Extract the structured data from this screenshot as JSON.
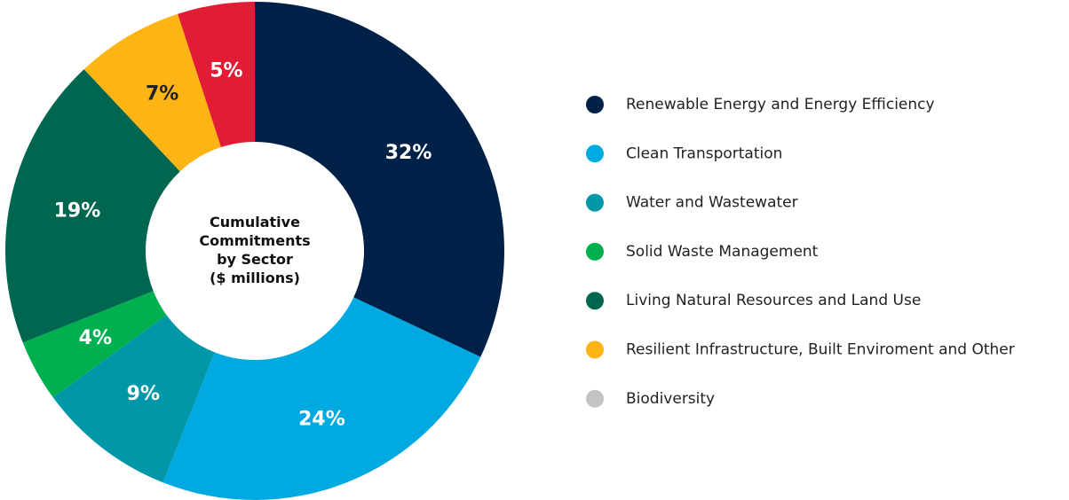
{
  "chart_data": {
    "type": "donut",
    "center_label": [
      "Cumulative",
      "Commitments",
      "by Sector",
      "($ millions)"
    ],
    "categories": [
      "Renewable Energy and Energy Efficiency",
      "Clean Transportation",
      "Water and Wastewater",
      "Solid Waste Management",
      "Living Natural Resources and Land Use",
      "Resilient Infrastructure, Built Enviroment and Other",
      "Biodiversity"
    ],
    "values": [
      32,
      24,
      9,
      4,
      19,
      7,
      5
    ],
    "value_labels": [
      "32%",
      "24%",
      "9%",
      "4%",
      "19%",
      "7%",
      "5%"
    ],
    "colors": [
      "#002147",
      "#00a9e0",
      "#0097a9",
      "#00b04f",
      "#00664f",
      "#fdb515",
      "#e31c35"
    ],
    "label_colors": [
      "#ffffff",
      "#ffffff",
      "#ffffff",
      "#ffffff",
      "#ffffff",
      "#222222",
      "#ffffff"
    ],
    "legend_colors": [
      "#002147",
      "#00a9e0",
      "#0097a9",
      "#00b04f",
      "#00664f",
      "#fdb515",
      "#c4c4c4"
    ]
  }
}
